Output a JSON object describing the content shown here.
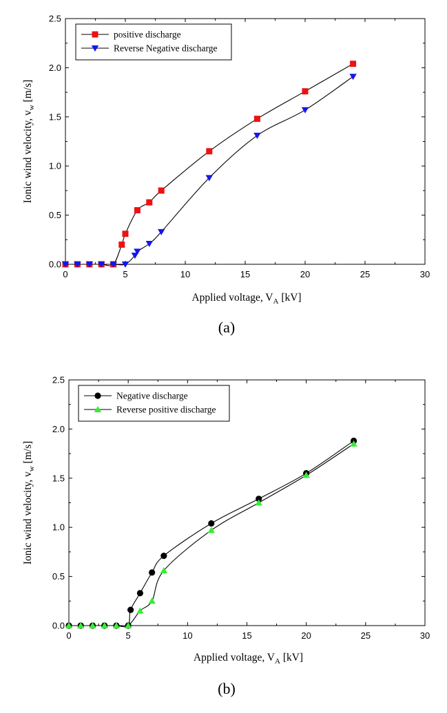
{
  "chart_data": [
    {
      "type": "line",
      "panel_label": "(a)",
      "xlabel": {
        "main": "Applied voltage, V",
        "sub": "A",
        "unit": " [kV]"
      },
      "ylabel": {
        "main": "Ionic wind velocity, v",
        "sub": "w",
        "unit": " [m/s]"
      },
      "xlim": [
        0,
        30
      ],
      "ylim": [
        0,
        2.5
      ],
      "xticks": [
        0,
        5,
        10,
        15,
        20,
        25,
        30
      ],
      "yticks": [
        0,
        0.5,
        1,
        1.5,
        2,
        2.5
      ],
      "xtick_labels": [
        "0",
        "5",
        "10",
        "15",
        "20",
        "25",
        "30"
      ],
      "ytick_labels": [
        "0.0",
        "0.5",
        "1.0",
        "1.5",
        "2.0",
        "2.5"
      ],
      "grid": false,
      "legend": "top-left",
      "series": [
        {
          "name": "positive discharge",
          "marker": "square",
          "color": "#ee1111",
          "x": [
            0,
            1,
            2,
            3,
            4,
            4.7,
            5,
            6,
            7,
            8,
            12,
            16,
            20,
            24
          ],
          "y": [
            0,
            0,
            0,
            0,
            0,
            0.2,
            0.31,
            0.55,
            0.63,
            0.75,
            1.15,
            1.48,
            1.76,
            2.04
          ]
        },
        {
          "name": "Reverse Negative discharge",
          "marker": "triangle-down",
          "color": "#1515ee",
          "x": [
            0,
            1,
            2,
            3,
            4,
            5,
            5.8,
            6,
            7,
            8,
            12,
            16,
            20,
            24
          ],
          "y": [
            0,
            0,
            0,
            0,
            0,
            0,
            0.09,
            0.13,
            0.21,
            0.33,
            0.88,
            1.31,
            1.57,
            1.91
          ]
        }
      ]
    },
    {
      "type": "line",
      "panel_label": "(b)",
      "xlabel": {
        "main": "Applied voltage, V",
        "sub": "A",
        "unit": " [kV]"
      },
      "ylabel": {
        "main": "Ionic wind velocity, v",
        "sub": "w",
        "unit": " [m/s]"
      },
      "xlim": [
        0,
        30
      ],
      "ylim": [
        0,
        2.5
      ],
      "xticks": [
        0,
        5,
        10,
        15,
        20,
        25,
        30
      ],
      "yticks": [
        0,
        0.5,
        1,
        1.5,
        2,
        2.5
      ],
      "xtick_labels": [
        "0",
        "5",
        "10",
        "15",
        "20",
        "25",
        "30"
      ],
      "ytick_labels": [
        "0.0",
        "0.5",
        "1.0",
        "1.5",
        "2.0",
        "2.5"
      ],
      "grid": false,
      "legend": "top-left",
      "series": [
        {
          "name": "Negative discharge",
          "marker": "circle",
          "color": "#000000",
          "x": [
            0,
            1,
            2,
            3,
            4,
            5,
            5.2,
            6,
            7,
            8,
            12,
            16,
            20,
            24
          ],
          "y": [
            0,
            0,
            0,
            0,
            0,
            0,
            0.16,
            0.33,
            0.54,
            0.71,
            1.04,
            1.29,
            1.55,
            1.88
          ]
        },
        {
          "name": "Reverse positive discharge",
          "marker": "triangle-up",
          "color": "#33ee33",
          "x": [
            0,
            1,
            2,
            3,
            4,
            5,
            6,
            7,
            8,
            12,
            16,
            20,
            24
          ],
          "y": [
            0,
            0,
            0,
            0,
            0,
            0,
            0.15,
            0.25,
            0.56,
            0.97,
            1.25,
            1.53,
            1.85
          ]
        }
      ]
    }
  ]
}
